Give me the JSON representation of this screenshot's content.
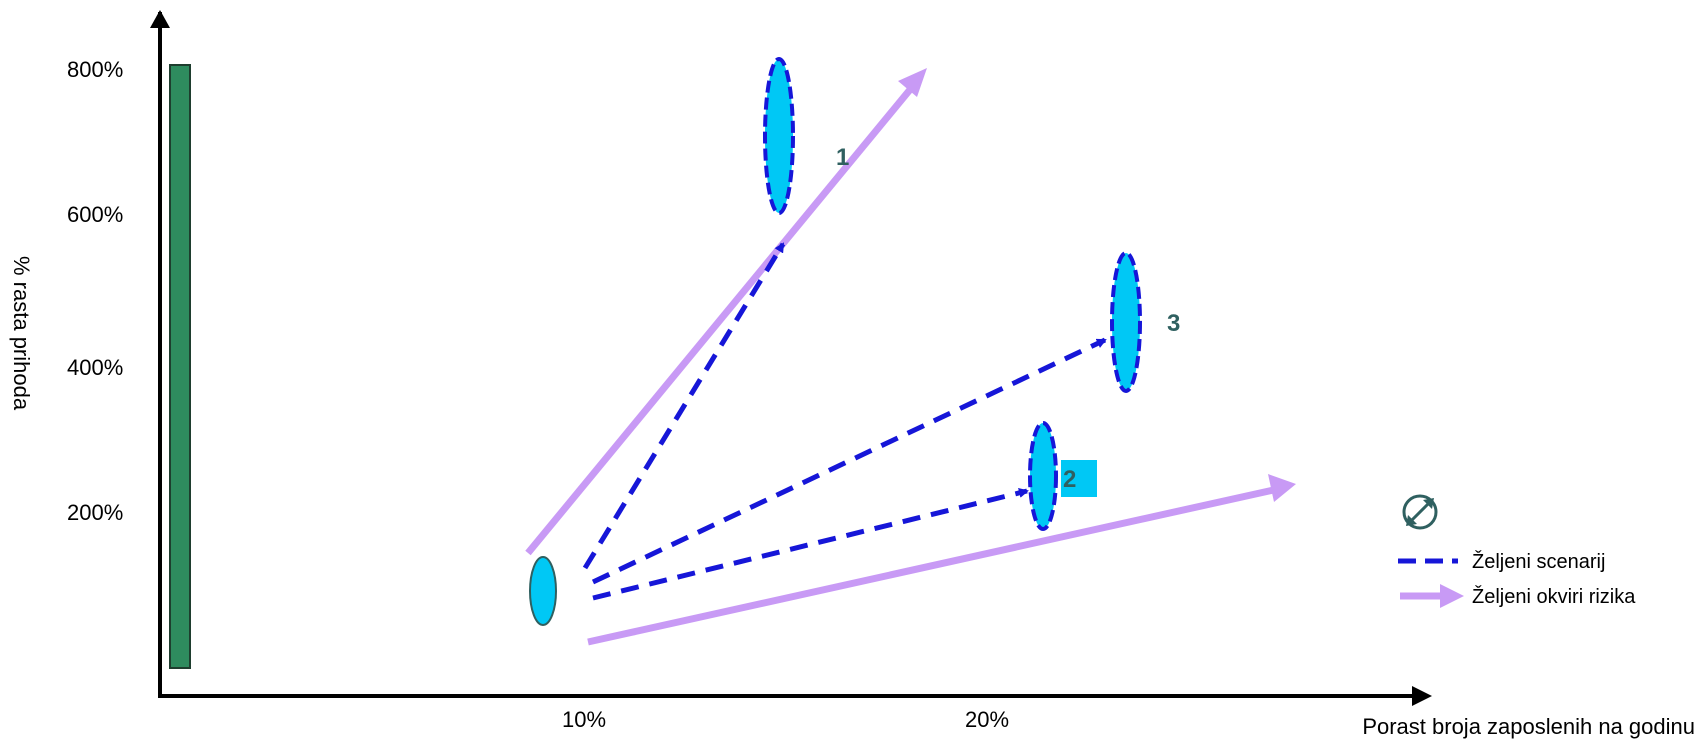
{
  "axes": {
    "y_title": "% rasta prihoda",
    "x_title": "Porast broja zaposlenih na godinu",
    "y_ticks": [
      "800%",
      "600%",
      "400%",
      "200%"
    ],
    "x_ticks": [
      "10%",
      "20%"
    ]
  },
  "scenarios": [
    {
      "label": "1"
    },
    {
      "label": "2"
    },
    {
      "label": "3"
    }
  ],
  "legend": {
    "desired_scenario": "Željeni scenarij",
    "desired_risk": "Željeni okviri rizika",
    "icon": "compass-arrows-icon"
  },
  "colors": {
    "bar": "#2E8B5E",
    "ellipse_fill": "#00C8F5",
    "dashed": "#1616D8",
    "risk_arrow": "#C89AF5",
    "label": "#2F6060",
    "label2_bg": "#00C8F5"
  }
}
